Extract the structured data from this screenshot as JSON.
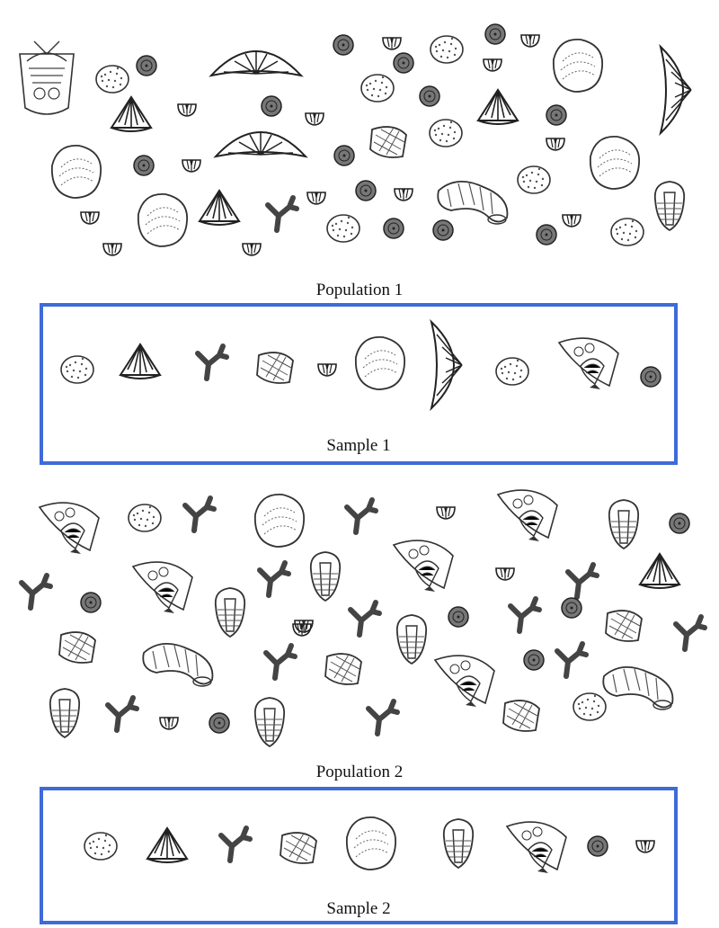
{
  "population_1": {
    "label": "Population 1"
  },
  "sample_1": {
    "label": "Sample 1"
  },
  "population_2": {
    "label": "Population 2"
  },
  "sample_2": {
    "label": "Sample 2"
  },
  "colors": {
    "ink": "#222222",
    "box_border": "#3f6ad8"
  },
  "fossil_types": [
    "brachiopod-ribbed",
    "crinoid-disc",
    "bryozoan",
    "ammonite",
    "trilobite",
    "coral-branch",
    "gastropod",
    "clam",
    "small-bivalve",
    "sponge"
  ]
}
